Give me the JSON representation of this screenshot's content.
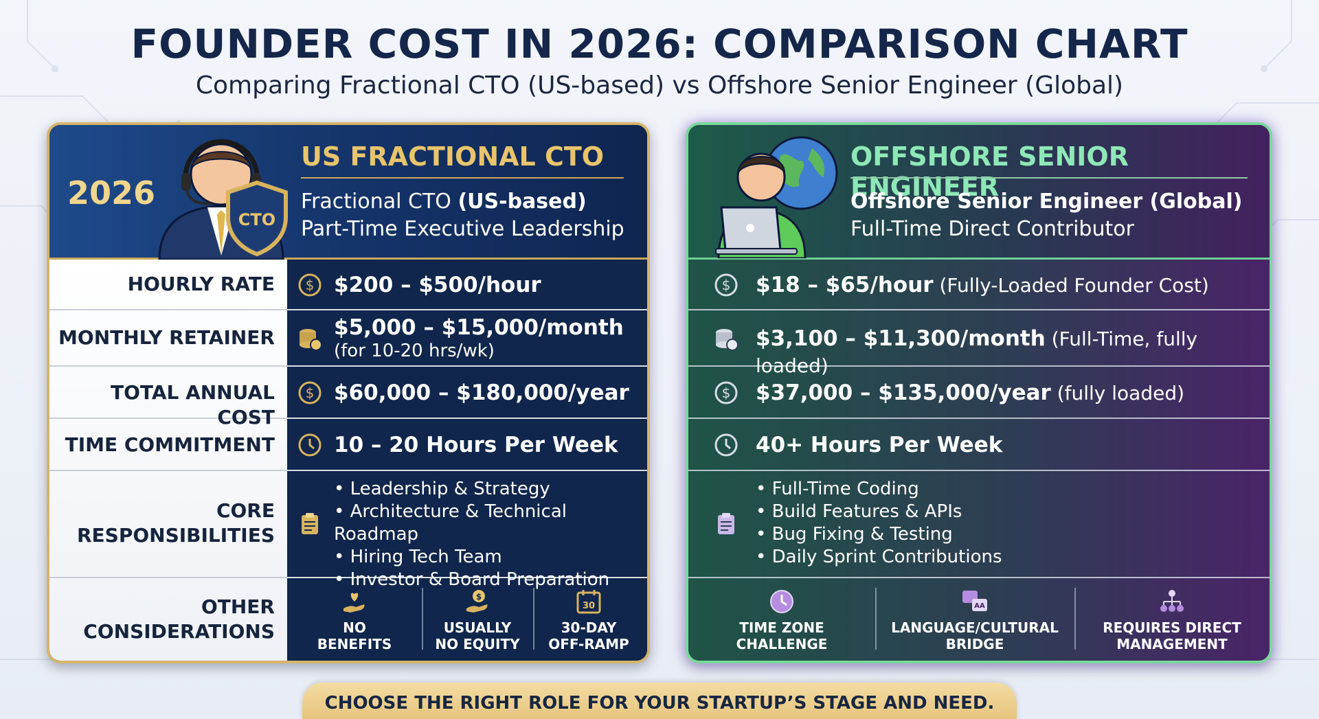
{
  "header": {
    "title": "FOUNDER COST IN 2026: COMPARISON CHART",
    "subtitle": "Comparing Fractional CTO (US-based) vs Offshore Senior Engineer (Global)"
  },
  "left": {
    "year": "2026",
    "badge": "CTO",
    "title": "US FRACTIONAL CTO",
    "sub1_prefix": "Fractional CTO ",
    "sub1_bold": "(US-based)",
    "sub2": "Part-Time Executive Leadership",
    "hourly": "$200 – $500/hour",
    "monthly": "$5,000 – $15,000/month",
    "monthly_note": "(for 10-20 hrs/wk)",
    "annual": "$60,000 – $180,000/year",
    "time": "10 – 20 Hours Per Week",
    "responsibilities": [
      "Leadership & Strategy",
      "Architecture & Technical Roadmap",
      "Hiring Tech Team",
      "Investor & Board Preparation"
    ],
    "considerations": [
      {
        "line1": "NO",
        "line2": "BENEFITS",
        "icon": "heart-hand-icon"
      },
      {
        "line1": "USUALLY",
        "line2": "NO EQUITY",
        "icon": "coin-hand-icon"
      },
      {
        "line1": "30-DAY",
        "line2": "OFF-RAMP",
        "icon": "calendar-icon",
        "badge": "30"
      }
    ]
  },
  "labels": {
    "hourly": "HOURLY RATE",
    "monthly": "MONTHLY RETAINER",
    "annual": "TOTAL ANNUAL COST",
    "time": "TIME COMMITMENT",
    "core1": "CORE",
    "core2": "RESPONSIBILITIES",
    "other1": "OTHER",
    "other2": "CONSIDERATIONS"
  },
  "right": {
    "title": "OFFSHORE SENIOR ENGINEER",
    "sub1": "Offshore Senior Engineer (Global)",
    "sub2": "Full-Time Direct Contributor",
    "hourly": "$18 – $65/hour",
    "hourly_note": " (Fully-Loaded Founder Cost)",
    "monthly": "$3,100 – $11,300/month",
    "monthly_note": " (Full-Time, fully loaded)",
    "annual": "$37,000 – $135,000/year",
    "annual_note": " (fully loaded)",
    "time": "40+ Hours Per Week",
    "responsibilities": [
      "Full-Time Coding",
      "Build Features & APIs",
      "Bug Fixing & Testing",
      "Daily Sprint Contributions"
    ],
    "considerations": [
      {
        "line1": "TIME ZONE",
        "line2": "CHALLENGE",
        "icon": "clock-icon"
      },
      {
        "line1": "LANGUAGE/CULTURAL",
        "line2": "BRIDGE",
        "icon": "translate-icon",
        "badge": "AA"
      },
      {
        "line1": "REQUIRES DIRECT",
        "line2": "MANAGEMENT",
        "icon": "org-chart-icon"
      }
    ]
  },
  "footer": {
    "banner": "CHOOSE THE RIGHT ROLE FOR YOUR STARTUP’S STAGE AND NEED."
  },
  "colors": {
    "gold": "#e8c46c",
    "green": "#8ee8b6",
    "navy": "#10264c",
    "purple": "#4a2468"
  }
}
